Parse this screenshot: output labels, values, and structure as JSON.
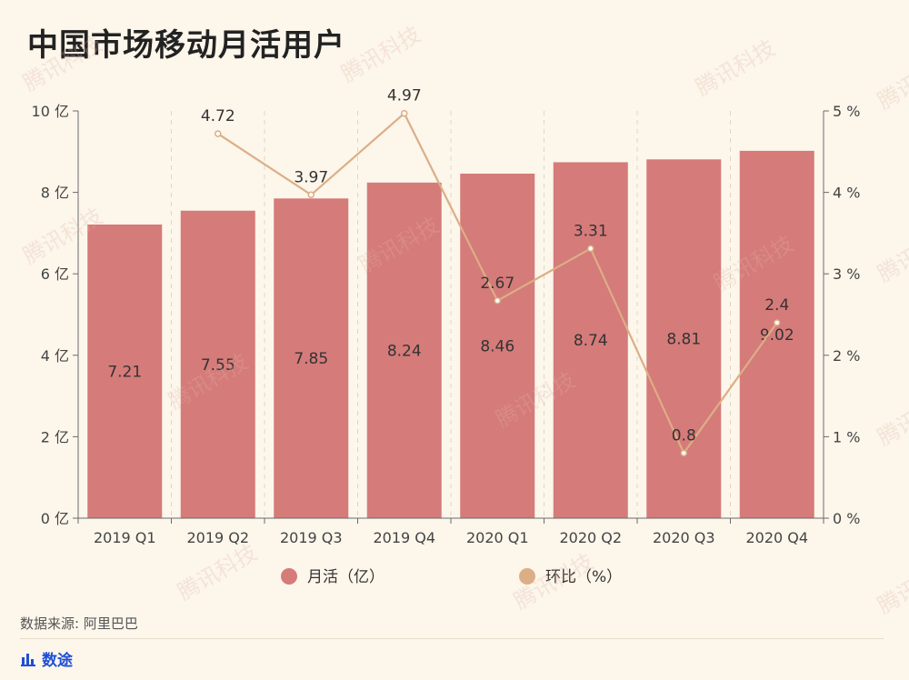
{
  "title": "中国市场移动月活用户",
  "source": "数据来源: 阿里巴巴",
  "brand": {
    "name": "数途",
    "icon": "bar-chart-icon",
    "color": "#1f4fd6"
  },
  "watermark": "腾讯科技",
  "chart_data": {
    "type": "bar",
    "categories": [
      "2019 Q1",
      "2019 Q2",
      "2019 Q3",
      "2019 Q4",
      "2020 Q1",
      "2020 Q2",
      "2020 Q3",
      "2020 Q4"
    ],
    "series": [
      {
        "name": "月活（亿）",
        "type": "bar",
        "axis": "left",
        "color": "#d57b7a",
        "values": [
          7.21,
          7.55,
          7.85,
          8.24,
          8.46,
          8.74,
          8.81,
          9.02
        ],
        "labels": [
          "7.21",
          "7.55",
          "7.85",
          "8.24",
          "8.46",
          "8.74",
          "8.81",
          "9.02"
        ]
      },
      {
        "name": "环比（%）",
        "type": "line",
        "axis": "right",
        "color": "#dcae86",
        "values": [
          null,
          4.72,
          3.97,
          4.97,
          2.67,
          3.31,
          0.8,
          2.4
        ],
        "labels": [
          "",
          "4.72",
          "3.97",
          "4.97",
          "2.67",
          "3.31",
          "0.8",
          "2.4"
        ]
      }
    ],
    "y_left": {
      "ylim": [
        0,
        10
      ],
      "ticks": [
        0,
        2,
        4,
        6,
        8,
        10
      ],
      "unit": "亿",
      "tick_labels": [
        "0 亿",
        "2 亿",
        "4 亿",
        "6 亿",
        "8 亿",
        "10 亿"
      ]
    },
    "y_right": {
      "ylim": [
        0,
        5
      ],
      "ticks": [
        0,
        1,
        2,
        3,
        4,
        5
      ],
      "unit": "%",
      "tick_labels": [
        "0 %",
        "1 %",
        "2 %",
        "3 %",
        "4 %",
        "5 %"
      ]
    },
    "grid": "vertical-dashed",
    "legend_position": "bottom"
  }
}
